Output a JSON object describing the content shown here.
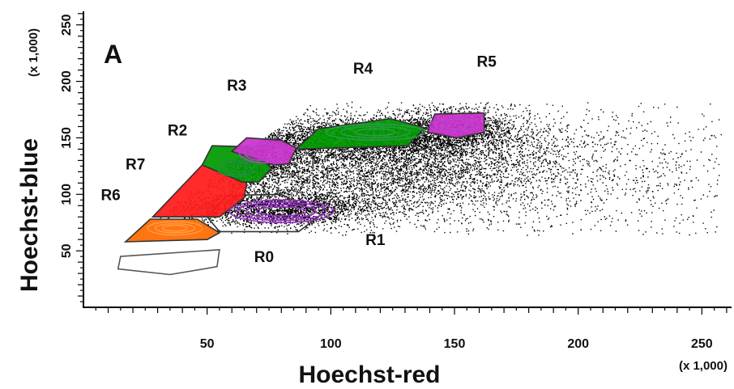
{
  "chart_data": {
    "type": "scatter",
    "panel_label": "A",
    "xlabel": "Hoechst-red",
    "ylabel": "Hoechst-blue",
    "x_multiplier": "(x 1,000)",
    "y_multiplier": "(x 1,000)",
    "xlim": [
      0,
      262
    ],
    "ylim": [
      0,
      262
    ],
    "x_ticks": [
      50,
      100,
      150,
      200,
      250
    ],
    "y_ticks": [
      50,
      100,
      150,
      200,
      250
    ],
    "x_tick_labels": [
      "50",
      "100",
      "150",
      "200",
      "250"
    ],
    "y_tick_labels": [
      "50",
      "100",
      "150",
      "200",
      "250"
    ],
    "grid": false,
    "point_color": "#000000",
    "populations": [
      {
        "cx": 120,
        "cy": 125,
        "sx": 38,
        "sy": 22,
        "n": 5200
      },
      {
        "cx": 112,
        "cy": 150,
        "sx": 30,
        "sy": 9,
        "n": 3200
      },
      {
        "cx": 80,
        "cy": 88,
        "sx": 20,
        "sy": 8,
        "n": 2400
      },
      {
        "cx": 150,
        "cy": 160,
        "sx": 12,
        "sy": 9,
        "n": 1300
      },
      {
        "cx": 72,
        "cy": 128,
        "sx": 12,
        "sy": 12,
        "n": 1100
      },
      {
        "cx": 185,
        "cy": 120,
        "sx": 45,
        "sy": 35,
        "n": 900
      },
      {
        "cx": 230,
        "cy": 115,
        "sx": 30,
        "sy": 35,
        "n": 250
      }
    ],
    "gates": [
      {
        "name": "R0",
        "label_at": [
          73,
          40
        ],
        "outline": "#555555",
        "fill": "none",
        "polygon": [
          [
            15,
            45
          ],
          [
            55,
            51
          ],
          [
            54,
            36
          ],
          [
            35,
            29
          ],
          [
            14,
            34
          ]
        ]
      },
      {
        "name": "R1",
        "label_at": [
          118,
          55
        ],
        "outline": "#333333",
        "fill": "none",
        "polygon": [
          [
            55,
            67
          ],
          [
            87,
            67
          ],
          [
            96,
            82
          ],
          [
            80,
            100
          ],
          [
            58,
            99
          ],
          [
            50,
            80
          ]
        ]
      },
      {
        "name": "R6",
        "label_at": [
          11,
          95
        ],
        "outline": "#333333",
        "fill": "#ff6a00",
        "polygon": [
          [
            17,
            58
          ],
          [
            50,
            60
          ],
          [
            55,
            66
          ],
          [
            46,
            78
          ],
          [
            27,
            78
          ]
        ]
      },
      {
        "name": "R7",
        "label_at": [
          21,
          122
        ],
        "outline": "#333333",
        "fill": "#ff1a1a",
        "polygon": [
          [
            28,
            80
          ],
          [
            55,
            80
          ],
          [
            65,
            97
          ],
          [
            66,
            110
          ],
          [
            48,
            126
          ]
        ]
      },
      {
        "name": "R2",
        "label_at": [
          38,
          152
        ],
        "outline": "#333333",
        "fill": "#009a00",
        "polygon": [
          [
            48,
            126
          ],
          [
            64,
            111
          ],
          [
            71,
            111
          ],
          [
            76,
            123
          ],
          [
            68,
            142
          ],
          [
            52,
            143
          ]
        ]
      },
      {
        "name": "R3",
        "label_at": [
          62,
          192
        ],
        "outline": "#333333",
        "fill": "#cc33cc",
        "polygon": [
          [
            60,
            138
          ],
          [
            77,
            126
          ],
          [
            83,
            127
          ],
          [
            86,
            141
          ],
          [
            80,
            148
          ],
          [
            66,
            150
          ]
        ]
      },
      {
        "name": "R4",
        "label_at": [
          113,
          207
        ],
        "outline": "#333333",
        "fill": "#009a00",
        "polygon": [
          [
            86,
            140
          ],
          [
            131,
            143
          ],
          [
            138,
            159
          ],
          [
            124,
            167
          ],
          [
            95,
            158
          ]
        ]
      },
      {
        "name": "R5",
        "label_at": [
          163,
          213
        ],
        "outline": "#333333",
        "fill": "#cc33cc",
        "polygon": [
          [
            139,
            155
          ],
          [
            151,
            150
          ],
          [
            162,
            155
          ],
          [
            162,
            172
          ],
          [
            142,
            171
          ]
        ]
      }
    ],
    "contours": [
      {
        "cx": 80,
        "cy": 85,
        "rx": [
          10,
          14,
          18,
          21
        ],
        "ry": [
          4,
          6,
          8,
          10
        ],
        "color": "#9b30c8"
      },
      {
        "cx": 73,
        "cy": 137,
        "rx": [
          5,
          8,
          10
        ],
        "ry": [
          4,
          7,
          9
        ],
        "color": "#c040d0"
      },
      {
        "cx": 62,
        "cy": 123,
        "rx": [
          4,
          6,
          8
        ],
        "ry": [
          3,
          5,
          7
        ],
        "color": "#1e8f3a"
      },
      {
        "cx": 37,
        "cy": 70,
        "rx": [
          5,
          8,
          11
        ],
        "ry": [
          2.5,
          4,
          6
        ],
        "color": "#ff9a40"
      },
      {
        "cx": 118,
        "cy": 155,
        "rx": [
          8,
          14,
          20
        ],
        "ry": [
          3,
          5,
          7
        ],
        "color": "#2a9a4a"
      },
      {
        "cx": 150,
        "cy": 161,
        "rx": [
          5,
          8,
          10
        ],
        "ry": [
          3,
          5,
          7
        ],
        "color": "#c040d0"
      }
    ]
  }
}
